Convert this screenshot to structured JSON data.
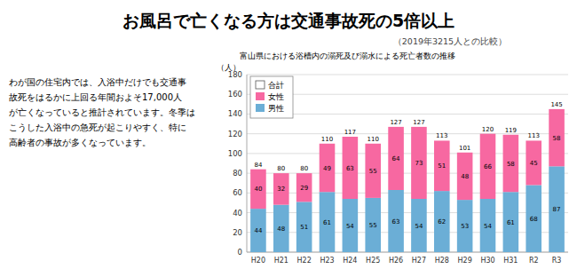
{
  "chart_data": {
    "type": "bar",
    "stacked": true,
    "title": "お風呂で亡くなる方は交通事故死の5倍以上",
    "subtitle": "（2019年3215人との比較）",
    "annotations": [
      "わが国の住宅内では、入浴中だけでも交通事",
      "故死をはるかに上回る年間およそ17,000人",
      "が亡くなっていると推計されています。冬季は",
      "こうした入浴中の急死が起こりやすく、特に",
      "高齢者の事故が多くなっています。"
    ],
    "chart_title": "富山県における浴槽内の溺死及び溺水による死亡者数の推移",
    "y_label": "（人）",
    "categories": [
      "H20",
      "H21",
      "H22",
      "H23",
      "H24",
      "H25",
      "H26",
      "H27",
      "H28",
      "H29",
      "H30",
      "H31",
      "R2",
      "R3"
    ],
    "series": [
      {
        "name": "男性",
        "color": "#6baed6",
        "values": [
          44,
          48,
          51,
          61,
          54,
          55,
          63,
          54,
          62,
          53,
          54,
          61,
          68,
          87
        ]
      },
      {
        "name": "女性",
        "color": "#f768a1",
        "values": [
          40,
          32,
          29,
          49,
          63,
          55,
          64,
          73,
          51,
          48,
          66,
          58,
          45,
          58
        ]
      }
    ],
    "totals": {
      "name": "合計",
      "color": "#ffffff",
      "values": [
        84,
        80,
        80,
        110,
        117,
        110,
        127,
        127,
        113,
        101,
        120,
        119,
        113,
        145
      ]
    },
    "ylim": [
      0,
      180
    ],
    "yticks": [
      0,
      20,
      40,
      60,
      80,
      100,
      120,
      140,
      160,
      180
    ],
    "grid": true,
    "legend": "upper left",
    "data_labels": true
  }
}
